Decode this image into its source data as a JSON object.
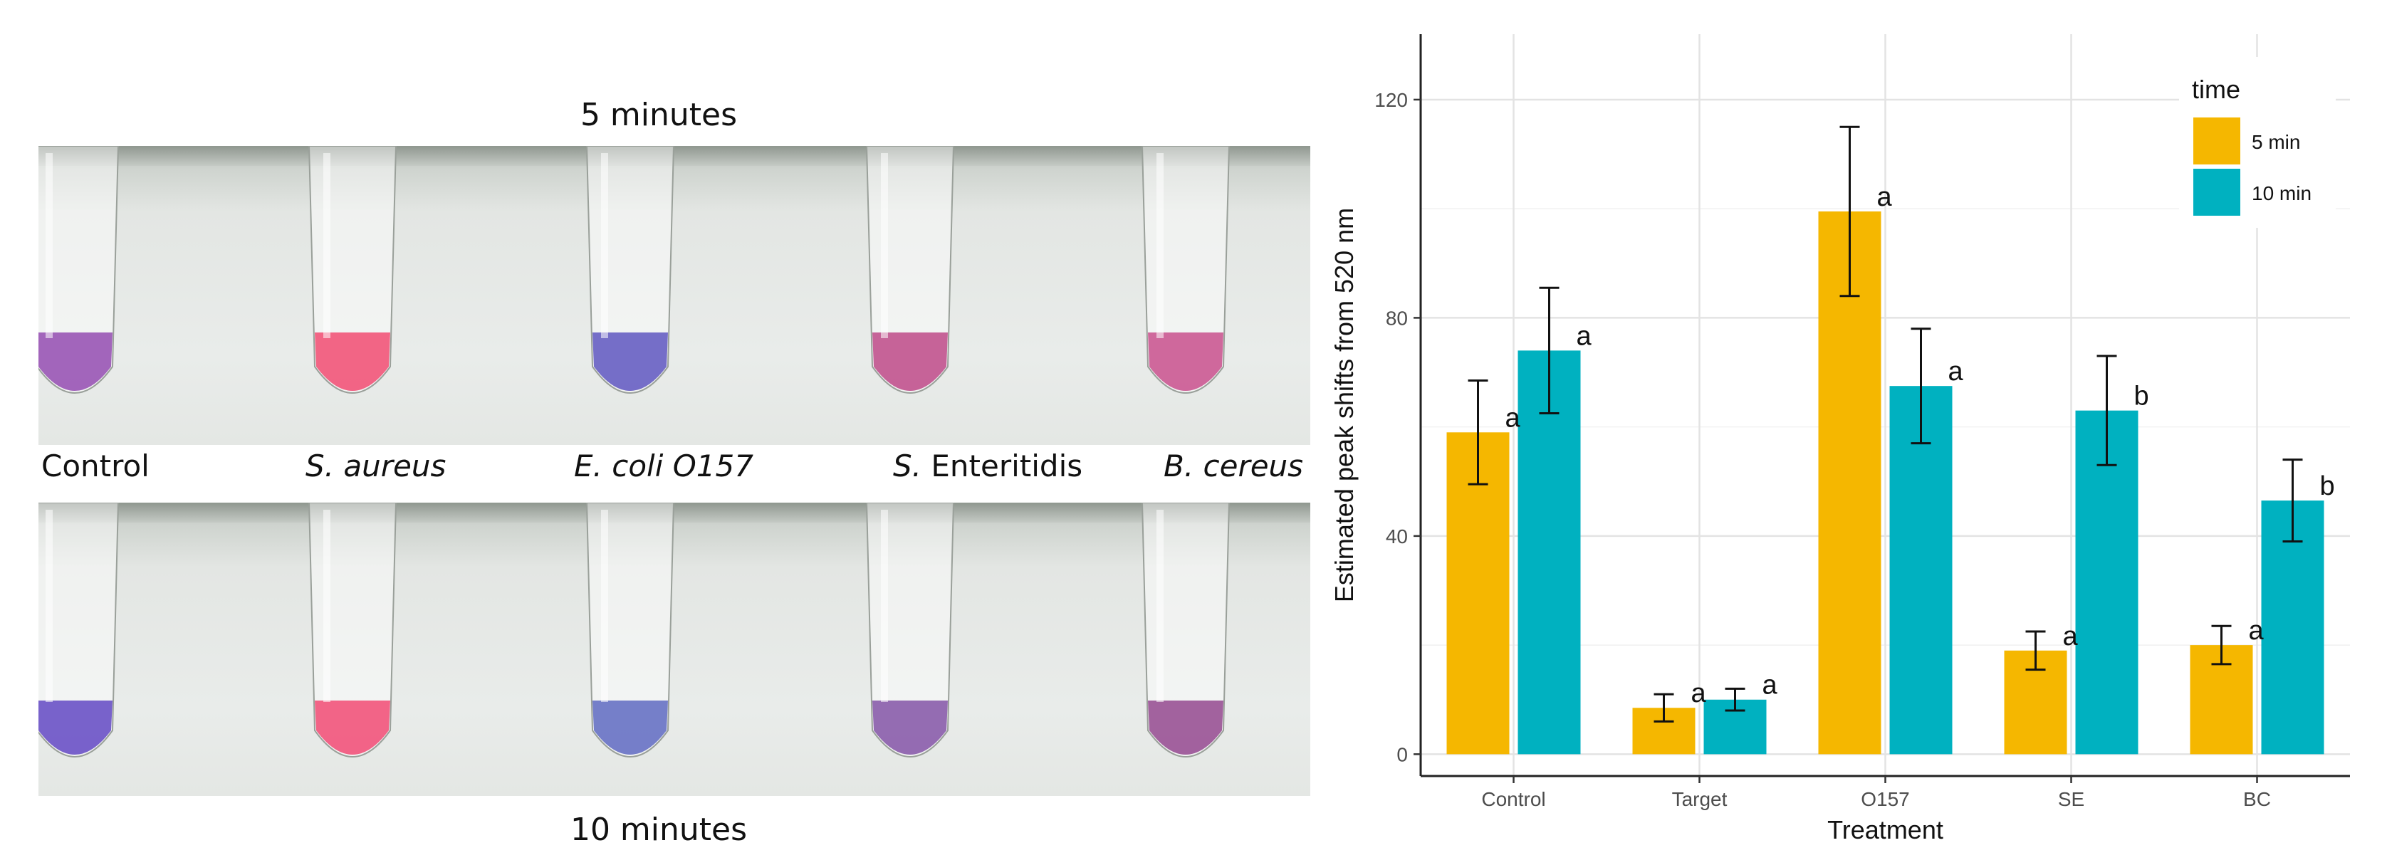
{
  "photo_panel": {
    "top_label": "5 minutes",
    "bottom_label": "10 minutes",
    "samples": [
      {
        "italic": "",
        "plain": "Control",
        "color5": "#9b58b6",
        "color10": "#6e55c8"
      },
      {
        "italic": "S. aureus",
        "plain": "",
        "color5": "#f2587c",
        "color10": "#f2577e"
      },
      {
        "italic": "E. coli O157",
        "plain": "",
        "color5": "#6a62c4",
        "color10": "#6a74c6"
      },
      {
        "italic": "S.",
        "plain": " Enteritidis",
        "color5": "#c25690",
        "color10": "#8c5fac"
      },
      {
        "italic": "B. cereus",
        "plain": "",
        "color5": "#cc5b95",
        "color10": "#9b5597"
      }
    ]
  },
  "chart_data": {
    "type": "bar",
    "categories": [
      "Control",
      "Target",
      "O157",
      "SE",
      "BC"
    ],
    "series": [
      {
        "name": "5 min",
        "color": "#f5b700",
        "values": [
          59,
          8.5,
          99.5,
          19,
          20
        ],
        "errors": [
          9.5,
          2.5,
          15.5,
          3.5,
          3.5
        ],
        "letters": [
          "a",
          "a",
          "a",
          "a",
          "a"
        ]
      },
      {
        "name": "10 min",
        "color": "#00b1c0",
        "values": [
          74,
          10,
          67.5,
          63,
          46.5
        ],
        "errors": [
          11.5,
          2,
          10.5,
          10,
          7.5
        ],
        "letters": [
          "a",
          "a",
          "a",
          "b",
          "b"
        ]
      }
    ],
    "xlabel": "Treatment",
    "ylabel": "Estimated peak shifts from 520 nm",
    "ylim": [
      -4,
      132
    ],
    "yticks": [
      0,
      40,
      80,
      120
    ],
    "legend_title": "time",
    "legend_position": "top-right",
    "grid": true
  }
}
